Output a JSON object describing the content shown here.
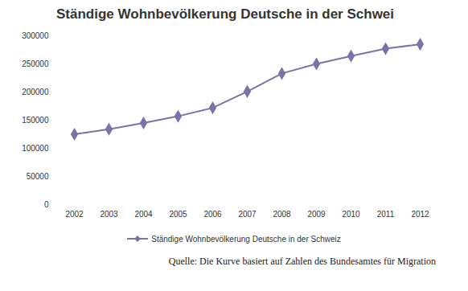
{
  "chart_data": {
    "type": "line",
    "title": "Ständige Wohnbevölkerung Deutsche in der Schwei",
    "source": "Quelle: Die Kurve basiert auf Zahlen des Bundesamtes für Migration",
    "categories": [
      "2002",
      "2003",
      "2004",
      "2005",
      "2006",
      "2007",
      "2008",
      "2009",
      "2010",
      "2011",
      "2012"
    ],
    "series": [
      {
        "name": "Ständige Wohnbevölkerung Deutsche in der Schweiz",
        "color": "#7b72a8",
        "marker": "diamond",
        "values": [
          125000,
          134000,
          145000,
          157000,
          172000,
          201000,
          233000,
          250000,
          264000,
          277000,
          285000
        ]
      }
    ],
    "ylim": [
      0,
      300000
    ],
    "yticks": [
      0,
      50000,
      100000,
      150000,
      200000,
      250000,
      300000
    ],
    "grid": false,
    "legend": "bottom"
  }
}
